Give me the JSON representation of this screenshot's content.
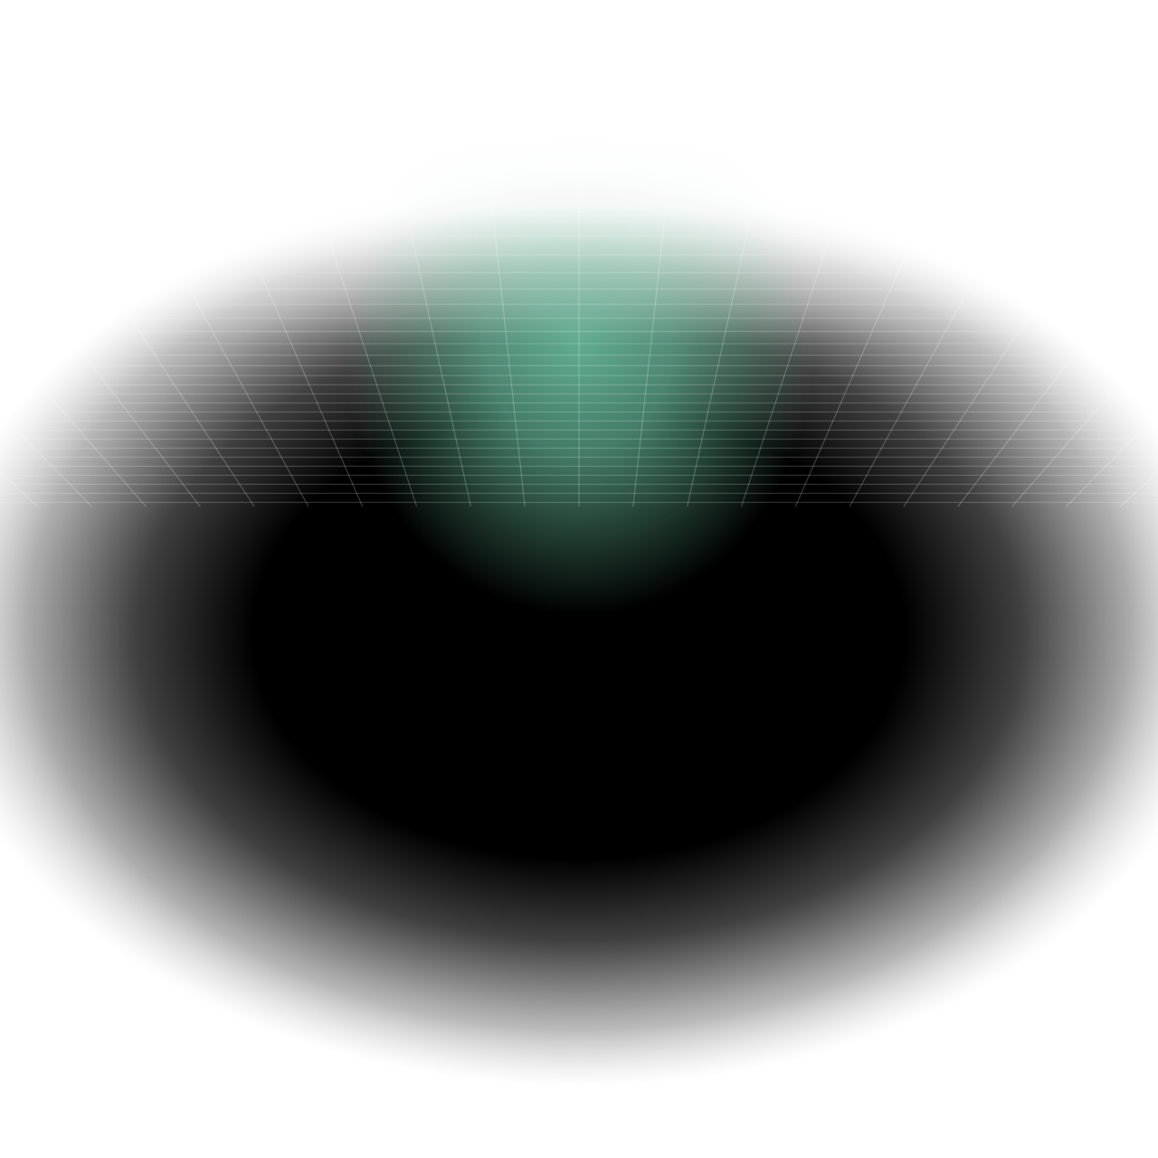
{
  "scene": {
    "background_color": "#ffffff",
    "shadow_color": "#000000",
    "glow_color": "#62b292",
    "grid_color": "#ffffff"
  }
}
